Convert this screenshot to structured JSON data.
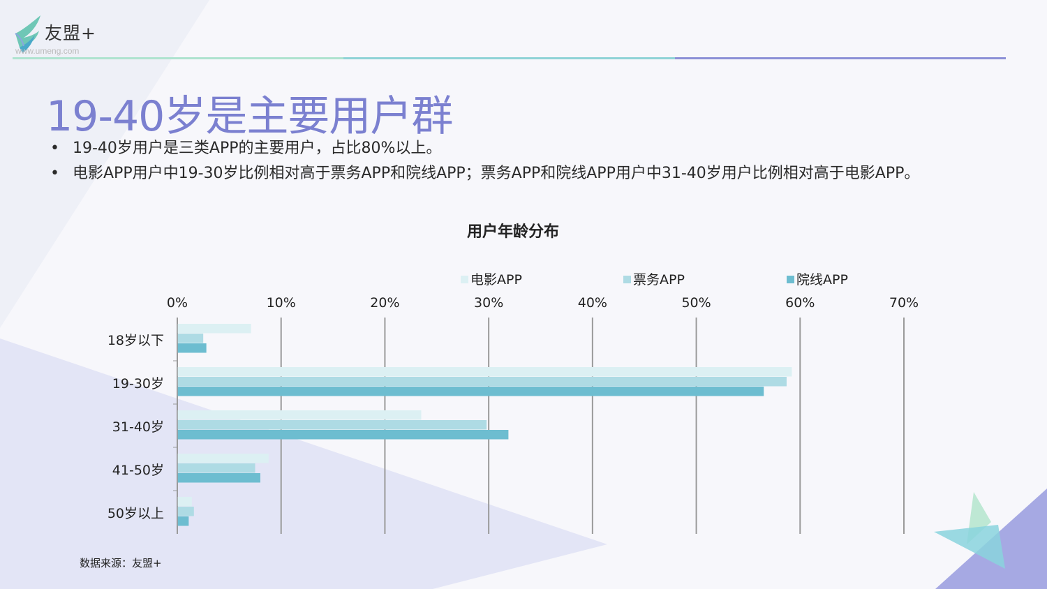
{
  "brand": {
    "name": "友盟+",
    "url": "www.umeng.com"
  },
  "colors": {
    "title": "#7b80d0",
    "series": [
      "#dcf0f3",
      "#aedbe4",
      "#6dbdd0"
    ],
    "grid": "#9a9a9a"
  },
  "page_title": "19-40岁是主要用户群",
  "bullets": [
    "19-40岁用户是三类APP的主要用户，占比80%以上。",
    "电影APP用户中19-30岁比例相对高于票务APP和院线APP；票务APP和院线APP用户中31-40岁用户比例相对高于电影APP。"
  ],
  "source_note": "数据来源：友盟+",
  "chart_data": {
    "type": "bar",
    "orientation": "horizontal",
    "title": "用户年龄分布",
    "categories": [
      "18岁以下",
      "19-30岁",
      "31-40岁",
      "41-50岁",
      "50岁以上"
    ],
    "series": [
      {
        "name": "电影APP",
        "values": [
          7.1,
          59.2,
          23.5,
          8.8,
          1.4
        ]
      },
      {
        "name": "票务APP",
        "values": [
          2.5,
          58.7,
          29.8,
          7.5,
          1.6
        ]
      },
      {
        "name": "院线APP",
        "values": [
          2.8,
          56.5,
          31.9,
          8.0,
          1.1
        ]
      }
    ],
    "xlim": [
      0,
      70
    ],
    "xticks": [
      "0%",
      "10%",
      "20%",
      "30%",
      "40%",
      "50%",
      "60%",
      "70%"
    ],
    "axis_position": "top",
    "legend_position": "top",
    "grid": true
  }
}
